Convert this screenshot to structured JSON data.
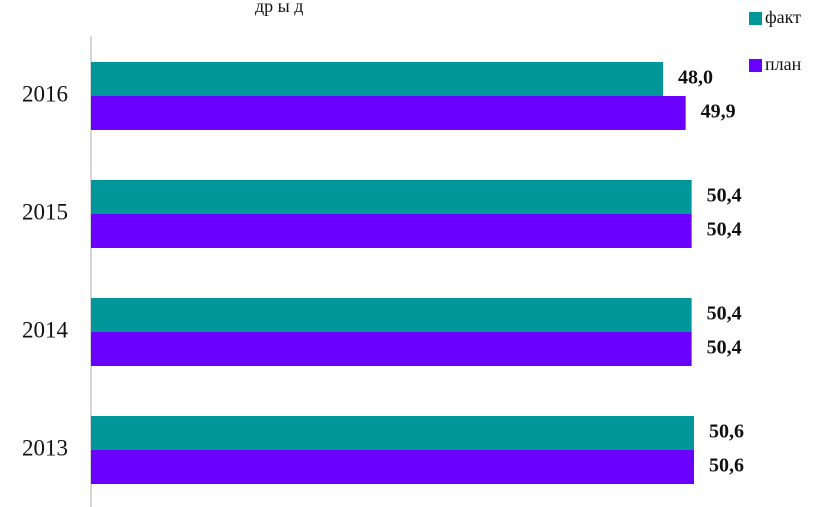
{
  "title_fragment": "др  ы    д",
  "legend": [
    {
      "label": "факт",
      "color": "#00979a"
    },
    {
      "label": "план",
      "color": "#6a00ff"
    }
  ],
  "chart_data": {
    "type": "bar",
    "orientation": "horizontal",
    "categories": [
      "2016",
      "2015",
      "2014",
      "2013"
    ],
    "series": [
      {
        "name": "факт",
        "color": "#00979a",
        "values": [
          48.0,
          50.4,
          50.4,
          50.6
        ],
        "labels": [
          "48,0",
          "50,4",
          "50,4",
          "50,6"
        ]
      },
      {
        "name": "план",
        "color": "#6a00ff",
        "values": [
          49.9,
          50.4,
          50.4,
          50.6
        ],
        "labels": [
          "49,9",
          "50,4",
          "50,4",
          "50,6"
        ]
      }
    ],
    "xlim": [
      0,
      52
    ],
    "grid": false,
    "legend_position": "top-right"
  }
}
